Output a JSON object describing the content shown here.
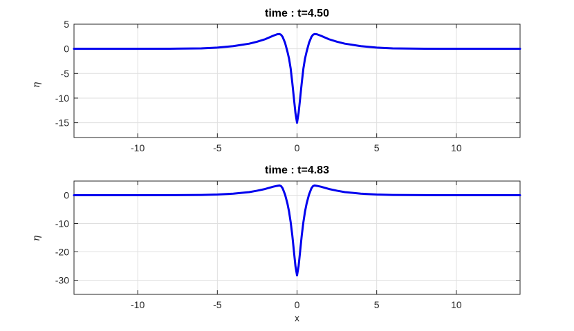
{
  "chart_data": [
    {
      "type": "line",
      "title": "time : t=4.50",
      "xlabel": "",
      "ylabel": "η",
      "xlim": [
        -14,
        14
      ],
      "ylim": [
        -18,
        5
      ],
      "xticks": [
        -10,
        -5,
        0,
        5,
        10
      ],
      "xtick_labels": [
        "-10",
        "-5",
        "0",
        "5",
        "10"
      ],
      "yticks": [
        5,
        0,
        -5,
        -10,
        -15
      ],
      "ytick_labels": [
        "5",
        "0",
        "-5",
        "-10",
        "-15"
      ],
      "grid": true,
      "line_color": "#0000ee",
      "series": [
        {
          "x": [
            -14,
            -12,
            -10,
            -8,
            -6,
            -5,
            -4,
            -3,
            -2.5,
            -2,
            -1.75,
            -1.5,
            -1.25,
            -1.1,
            -1.0,
            -0.9,
            -0.75,
            -0.6,
            -0.5,
            -0.4,
            -0.3,
            -0.2,
            -0.1,
            0,
            0.1,
            0.2,
            0.3,
            0.4,
            0.5,
            0.6,
            0.75,
            0.9,
            1.0,
            1.1,
            1.25,
            1.5,
            1.75,
            2,
            2.5,
            3,
            4,
            5,
            6,
            8,
            10,
            12,
            14
          ],
          "y": [
            0,
            0,
            0,
            0.02,
            0.1,
            0.25,
            0.55,
            1.05,
            1.45,
            1.95,
            2.3,
            2.65,
            2.95,
            3.0,
            2.85,
            2.4,
            1.2,
            -0.6,
            -2.0,
            -4.0,
            -6.8,
            -9.9,
            -13.0,
            -15.0,
            -13.0,
            -9.9,
            -6.8,
            -4.0,
            -2.0,
            -0.6,
            1.2,
            2.4,
            2.85,
            3.0,
            2.95,
            2.65,
            2.3,
            1.95,
            1.45,
            1.05,
            0.55,
            0.25,
            0.1,
            0.02,
            0,
            0,
            0
          ]
        }
      ]
    },
    {
      "type": "line",
      "title": "time : t=4.83",
      "xlabel": "x",
      "ylabel": "η",
      "xlim": [
        -14,
        14
      ],
      "ylim": [
        -35,
        5
      ],
      "xticks": [
        -10,
        -5,
        0,
        5,
        10
      ],
      "xtick_labels": [
        "-10",
        "-5",
        "0",
        "5",
        "10"
      ],
      "yticks": [
        0,
        -10,
        -20,
        -30
      ],
      "ytick_labels": [
        "0",
        "-10",
        "-20",
        "-30"
      ],
      "grid": true,
      "line_color": "#0000ee",
      "series": [
        {
          "x": [
            -14,
            -12,
            -10,
            -8,
            -6,
            -5,
            -4,
            -3,
            -2.5,
            -2,
            -1.75,
            -1.5,
            -1.25,
            -1.1,
            -1.0,
            -0.9,
            -0.75,
            -0.6,
            -0.5,
            -0.4,
            -0.3,
            -0.2,
            -0.1,
            0,
            0.1,
            0.2,
            0.3,
            0.4,
            0.5,
            0.6,
            0.75,
            0.9,
            1.0,
            1.1,
            1.25,
            1.5,
            1.75,
            2,
            2.5,
            3,
            4,
            5,
            6,
            8,
            10,
            12,
            14
          ],
          "y": [
            0,
            0,
            0,
            0.02,
            0.1,
            0.25,
            0.55,
            1.1,
            1.6,
            2.2,
            2.6,
            3.0,
            3.3,
            3.45,
            3.2,
            2.4,
            0.2,
            -3.0,
            -5.8,
            -9.5,
            -14.0,
            -19.5,
            -25.0,
            -28.3,
            -25.0,
            -19.5,
            -14.0,
            -9.5,
            -5.8,
            -3.0,
            0.2,
            2.4,
            3.2,
            3.45,
            3.3,
            3.0,
            2.6,
            2.2,
            1.6,
            1.1,
            0.55,
            0.25,
            0.1,
            0.02,
            0,
            0,
            0
          ]
        }
      ]
    }
  ]
}
